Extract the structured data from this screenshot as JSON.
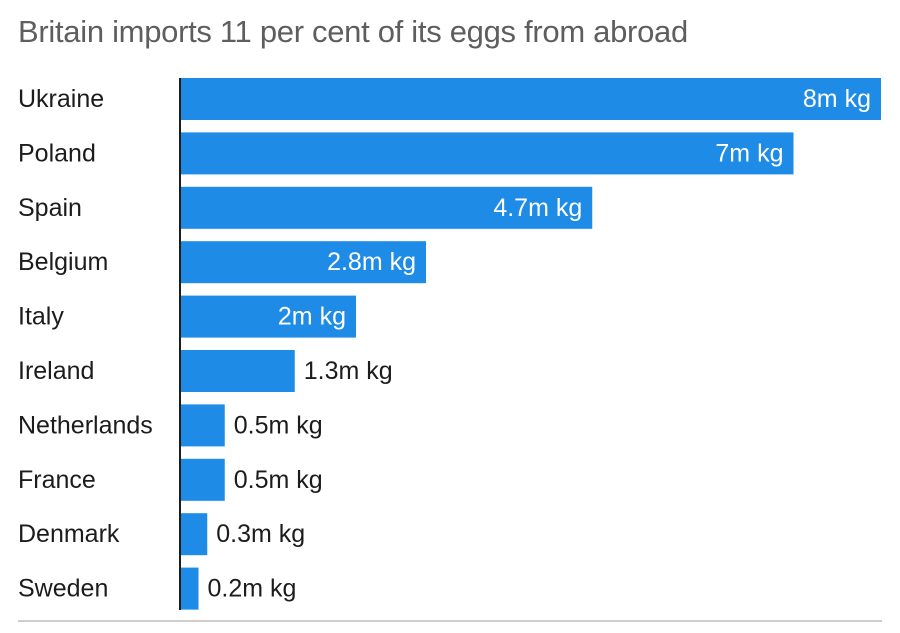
{
  "chart_data": {
    "type": "bar",
    "orientation": "horizontal",
    "title": "Britain imports 11 per cent of its eggs from abroad",
    "categories": [
      "Ukraine",
      "Poland",
      "Spain",
      "Belgium",
      "Italy",
      "Ireland",
      "Netherlands",
      "France",
      "Denmark",
      "Sweden"
    ],
    "values": [
      8,
      7,
      4.7,
      2.8,
      2,
      1.3,
      0.5,
      0.5,
      0.3,
      0.2
    ],
    "value_labels": [
      "8m kg",
      "7m kg",
      "4.7m kg",
      "2.8m kg",
      "2m kg",
      "1.3m kg",
      "0.5m kg",
      "0.5m kg",
      "0.3m kg",
      "0.2m kg"
    ],
    "unit": "m kg",
    "xlim": [
      0,
      8
    ],
    "grid": false,
    "legend": false,
    "colors": {
      "bar": "#1e8be6",
      "label_inside": "#ffffff",
      "label_outside": "#1c1c1c",
      "title": "#5e5e5e",
      "axis": "#1c1c1c",
      "rule": "#bdbdbd"
    }
  }
}
